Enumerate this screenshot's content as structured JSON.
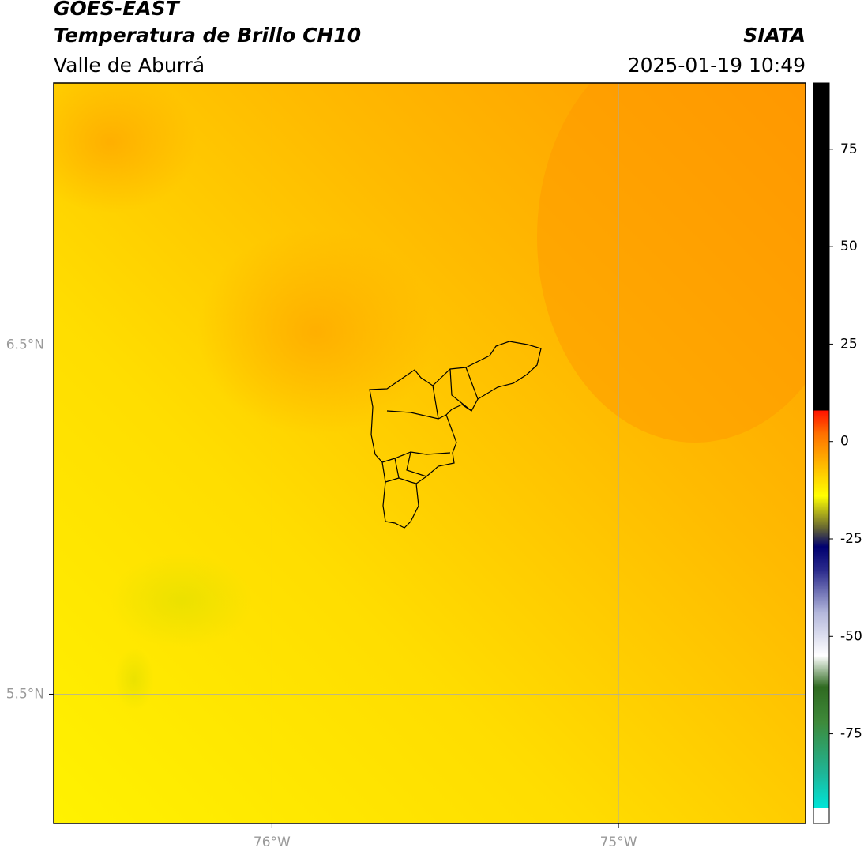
{
  "header": {
    "title": "GOES-EAST",
    "subtitle": "Temperatura de Brillo CH10",
    "region": "Valle de Aburrá",
    "source": "SIATA",
    "datetime": "2025-01-19 10:49"
  },
  "map": {
    "xlim": [
      -76.63,
      -74.46
    ],
    "ylim": [
      5.13,
      7.25
    ],
    "grid": true,
    "xticks": [
      {
        "value": -76,
        "label": "76°W"
      },
      {
        "value": -75,
        "label": "75°W"
      }
    ],
    "yticks": [
      {
        "value": 6.5,
        "label": "6.5°N"
      },
      {
        "value": 5.5,
        "label": "5.5°N"
      }
    ]
  },
  "colorbar": {
    "lim": [
      -98,
      92
    ],
    "ticks": [
      75,
      50,
      25,
      0,
      -25,
      -50,
      -75
    ],
    "stops": [
      {
        "value": -98,
        "color": "#ffffff"
      },
      {
        "value": -94,
        "color": "#ffffff"
      },
      {
        "value": -94,
        "color": "#00e5d8"
      },
      {
        "value": -85,
        "color": "#1fb596"
      },
      {
        "value": -72,
        "color": "#3e8a3a"
      },
      {
        "value": -63,
        "color": "#2f6a20"
      },
      {
        "value": -55,
        "color": "#ffffff"
      },
      {
        "value": -44,
        "color": "#b4b8dc"
      },
      {
        "value": -33,
        "color": "#2a2a8c"
      },
      {
        "value": -27,
        "color": "#000070"
      },
      {
        "value": -22,
        "color": "#6a6a30"
      },
      {
        "value": -14,
        "color": "#ffff00"
      },
      {
        "value": -5,
        "color": "#ffb000"
      },
      {
        "value": 2,
        "color": "#ff7000"
      },
      {
        "value": 8,
        "color": "#ff1000"
      },
      {
        "value": 8,
        "color": "#000000"
      },
      {
        "value": 92,
        "color": "#000000"
      }
    ]
  }
}
